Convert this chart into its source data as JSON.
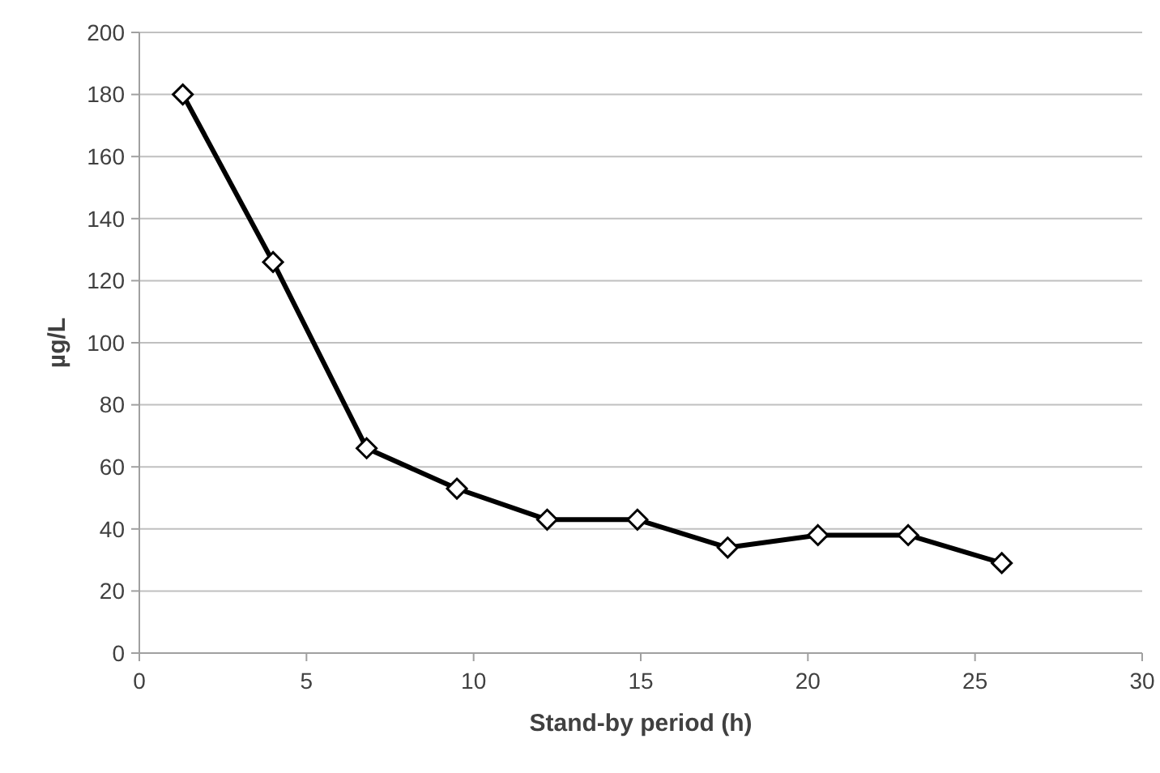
{
  "chart_data": {
    "type": "line",
    "xlabel": "Stand-by period (h)",
    "ylabel": "µg/L",
    "x": [
      1.3,
      4.0,
      6.8,
      9.5,
      12.2,
      14.9,
      17.6,
      20.3,
      23.0,
      25.8
    ],
    "series": [
      {
        "color": "#000000",
        "values": [
          180,
          126,
          66,
          53,
          43,
          43,
          34,
          38,
          38,
          29
        ]
      }
    ],
    "xlim": [
      0,
      30
    ],
    "xticks": [
      0,
      5,
      10,
      15,
      20,
      25,
      30
    ],
    "ylim": [
      0,
      200
    ],
    "yticks": [
      0,
      20,
      40,
      60,
      80,
      100,
      120,
      140,
      160,
      180,
      200
    ],
    "grid": "y",
    "marker": "diamond",
    "line_style": "solid"
  }
}
